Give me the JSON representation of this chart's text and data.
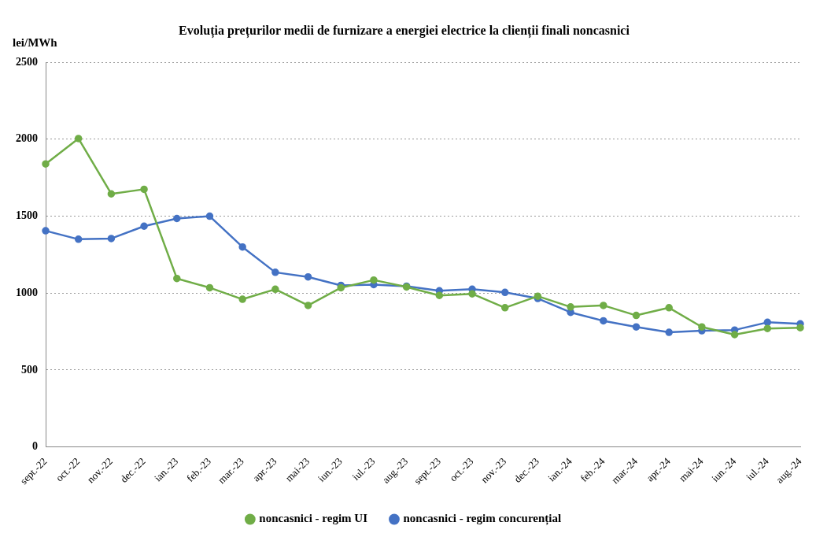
{
  "chart_data": {
    "type": "line",
    "title": "Evoluția prețurilor medii de furnizare a energiei electrice la clienții finali noncasnici",
    "ylabel": "lei/MWh",
    "categories": [
      "sept.-22",
      "oct.-22",
      "nov.-22",
      "dec.-22",
      "ian.-23",
      "feb.-23",
      "mar.-23",
      "apr.-23",
      "mai-23",
      "iun.-23",
      "iul.-23",
      "aug.-23",
      "sept.-23",
      "oct.-23",
      "nov.-23",
      "dec.-23",
      "ian.-24",
      "feb.-24",
      "mar.-24",
      "apr.-24",
      "mai-24",
      "iun.-24",
      "iul.-24",
      "aug.-24"
    ],
    "series": [
      {
        "name": "noncasnici - regim concurențial",
        "color": "#4472c4",
        "values": [
          1405,
          1350,
          1355,
          1435,
          1485,
          1500,
          1300,
          1135,
          1105,
          1050,
          1055,
          1045,
          1015,
          1025,
          1005,
          965,
          875,
          820,
          780,
          745,
          755,
          760,
          810,
          800
        ]
      },
      {
        "name": "noncasnici - regim UI",
        "color": "#70ad47",
        "values": [
          1840,
          2005,
          1645,
          1675,
          1095,
          1035,
          960,
          1025,
          920,
          1035,
          1085,
          1040,
          985,
          995,
          905,
          980,
          910,
          920,
          855,
          905,
          780,
          730,
          770,
          775
        ]
      }
    ],
    "ylim": [
      0,
      2500
    ],
    "yticks": [
      0,
      500,
      1000,
      1500,
      2000,
      2500
    ],
    "grid": "y",
    "legend": "bottom",
    "marker": "circle",
    "line_style": "solid"
  }
}
